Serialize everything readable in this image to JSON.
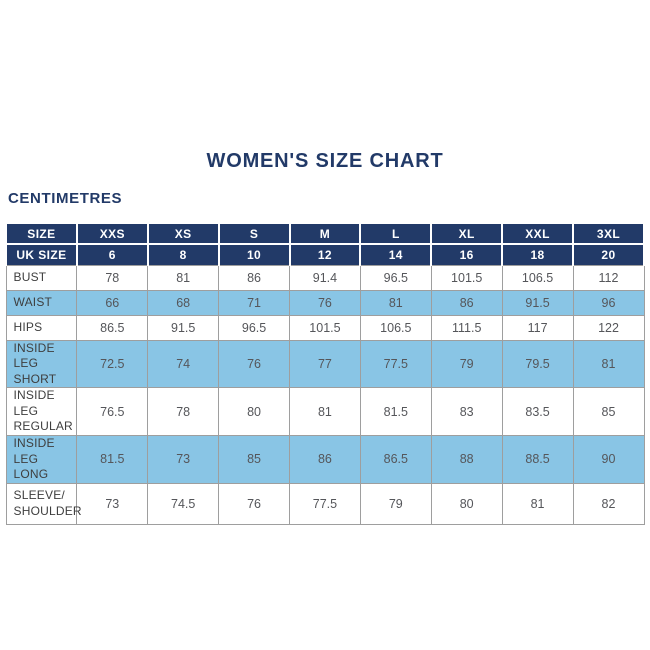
{
  "title": "WOMEN'S SIZE CHART",
  "subtitle": "CENTIMETRES",
  "colors": {
    "navy": "#223A68",
    "row_blue": "#89C5E5",
    "grid": "#9E9E9E",
    "value_text": "#55565A",
    "label_text": "#3E3E3E"
  },
  "chart_data": {
    "type": "table",
    "title": "WOMEN'S SIZE CHART",
    "unit": "CENTIMETRES",
    "header": {
      "size_label": "SIZE",
      "sizes": [
        "XXS",
        "XS",
        "S",
        "M",
        "L",
        "XL",
        "XXL",
        "3XL"
      ],
      "uk_size_label": "UK SIZE",
      "uk_sizes": [
        6,
        8,
        10,
        12,
        14,
        16,
        18,
        20
      ]
    },
    "rows": [
      {
        "label": "BUST",
        "highlight": false,
        "values": [
          78,
          81,
          86,
          91.4,
          96.5,
          101.5,
          106.5,
          112
        ]
      },
      {
        "label": "WAIST",
        "highlight": true,
        "values": [
          66,
          68,
          71,
          76,
          81,
          86,
          91.5,
          96
        ]
      },
      {
        "label": "HIPS",
        "highlight": false,
        "values": [
          86.5,
          91.5,
          96.5,
          101.5,
          106.5,
          111.5,
          117,
          122
        ]
      },
      {
        "label": "INSIDE LEG\nSHORT",
        "highlight": true,
        "values": [
          72.5,
          74,
          76,
          77,
          77.5,
          79,
          79.5,
          81
        ]
      },
      {
        "label": "INSIDE LEG\nREGULAR",
        "highlight": false,
        "values": [
          76.5,
          78,
          80,
          81,
          81.5,
          83,
          83.5,
          85
        ]
      },
      {
        "label": "INSIDE LEG\nLONG",
        "highlight": true,
        "values": [
          81.5,
          73,
          85,
          86,
          86.5,
          88,
          88.5,
          90
        ]
      },
      {
        "label": "SLEEVE/\nSHOULDER",
        "highlight": false,
        "values": [
          73,
          74.5,
          76,
          77.5,
          79,
          80,
          81,
          82
        ]
      }
    ]
  }
}
